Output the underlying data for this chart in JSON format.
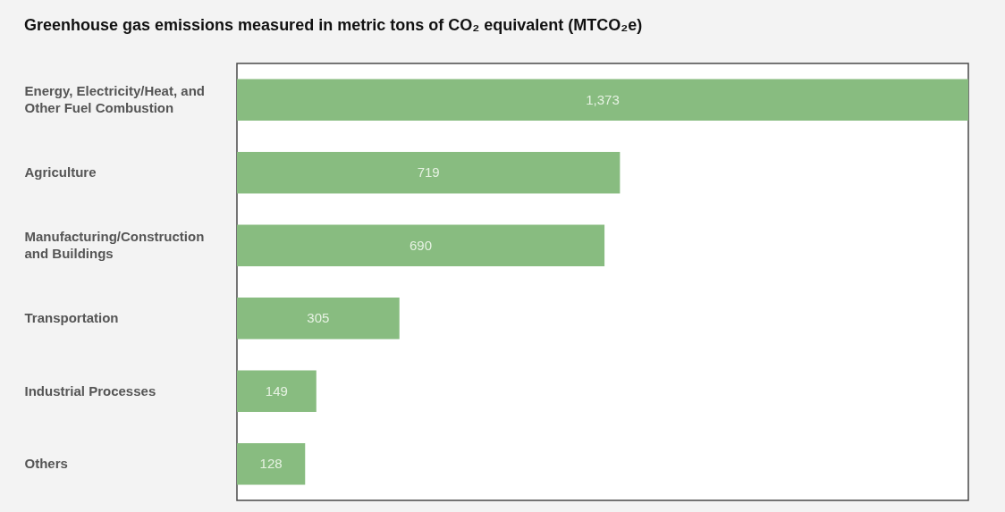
{
  "chart_data": {
    "type": "bar",
    "orientation": "horizontal",
    "title": "Greenhouse gas emissions measured in metric tons of CO₂ equivalent (MTCO₂e)",
    "categories": [
      "Energy, Electricity/Heat, and Other Fuel Combustion",
      "Agriculture",
      "Manufacturing/Construction and Buildings",
      "Transportation",
      "Industrial Processes",
      "Others"
    ],
    "values": [
      1373,
      719,
      690,
      305,
      149,
      128
    ],
    "value_labels": [
      "1,373",
      "719",
      "690",
      "305",
      "149",
      "128"
    ],
    "color": "#88bc80",
    "xlim": [
      0,
      1373
    ],
    "tick_labels": "y"
  }
}
